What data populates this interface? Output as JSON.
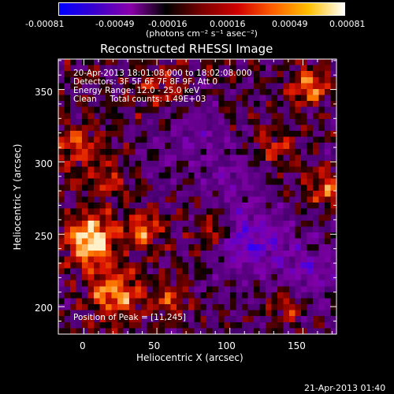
{
  "colorbar": {
    "ticks": [
      "-0.00081",
      "-0.00049",
      "-0.00016",
      "0.00016",
      "0.00049",
      "0.00081"
    ],
    "units": "(photons cm⁻² s⁻¹ asec⁻²)",
    "colors": [
      "#0000ff",
      "#3a00cc",
      "#8a00aa",
      "#000000",
      "#7a0000",
      "#d00000",
      "#ff6000",
      "#ffc000",
      "#ffffff"
    ]
  },
  "plot": {
    "title": "Reconstructed RHESSI Image",
    "xlabel": "Heliocentric X (arcsec)",
    "ylabel": "Heliocentric Y (arcsec)",
    "x_ticks": [
      "0",
      "50",
      "100",
      "150"
    ],
    "y_ticks": [
      "200",
      "250",
      "300",
      "350"
    ]
  },
  "info": {
    "line1": "20-Apr-2013 18:01:08.000 to 18:02:08.000",
    "line2": "Detectors: 3F 5F 6F 7F 8F 9F, Att 0",
    "line3": "Energy Range: 12.0 - 25.0 keV",
    "line4": "Clean     Total counts: 1.49E+03",
    "peak": "Position of Peak = [11,245]"
  },
  "timestamp": "21-Apr-2013 01:40"
}
